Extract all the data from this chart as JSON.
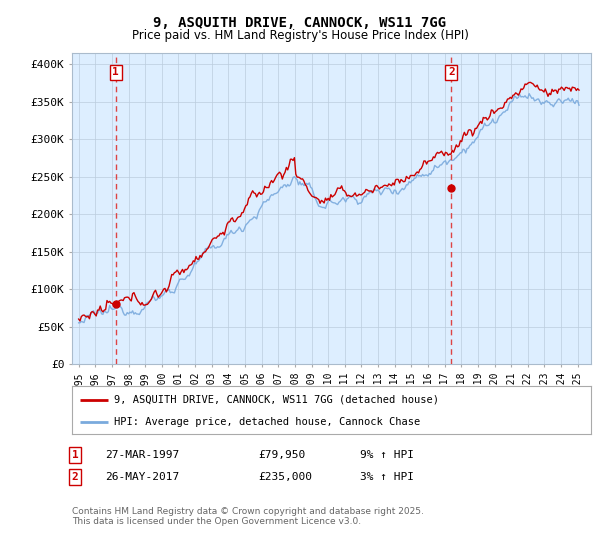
{
  "title": "9, ASQUITH DRIVE, CANNOCK, WS11 7GG",
  "subtitle": "Price paid vs. HM Land Registry's House Price Index (HPI)",
  "ylabel_ticks": [
    "£0",
    "£50K",
    "£100K",
    "£150K",
    "£200K",
    "£250K",
    "£300K",
    "£350K",
    "£400K"
  ],
  "ytick_values": [
    0,
    50000,
    100000,
    150000,
    200000,
    250000,
    300000,
    350000,
    400000
  ],
  "ylim": [
    0,
    415000
  ],
  "xlim_start": 1994.6,
  "xlim_end": 2025.8,
  "marker1_x": 1997.23,
  "marker1_y": 79950,
  "marker2_x": 2017.4,
  "marker2_y": 235000,
  "legend_line1": "9, ASQUITH DRIVE, CANNOCK, WS11 7GG (detached house)",
  "legend_line2": "HPI: Average price, detached house, Cannock Chase",
  "table_row1": [
    "1",
    "27-MAR-1997",
    "£79,950",
    "9% ↑ HPI"
  ],
  "table_row2": [
    "2",
    "26-MAY-2017",
    "£235,000",
    "3% ↑ HPI"
  ],
  "footer": "Contains HM Land Registry data © Crown copyright and database right 2025.\nThis data is licensed under the Open Government Licence v3.0.",
  "line_color_red": "#cc0000",
  "line_color_blue": "#7aaadd",
  "plot_bg": "#ddeeff",
  "grid_color": "#bbccdd",
  "dashed_line_color": "#dd4444",
  "box_color": "#cc0000",
  "fig_bg": "#ffffff"
}
